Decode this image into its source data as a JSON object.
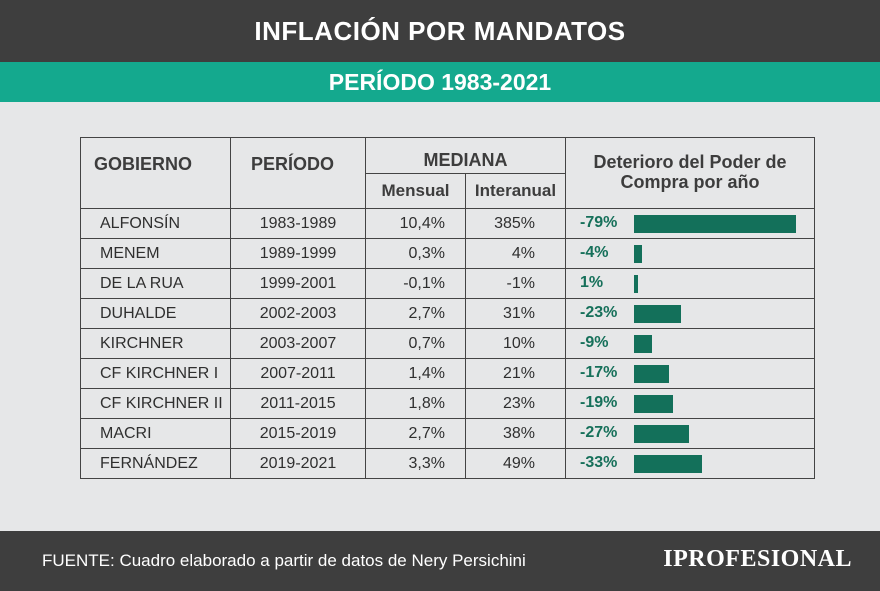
{
  "title": "INFLACIÓN POR MANDATOS",
  "subtitle": "PERÍODO 1983-2021",
  "headers": {
    "gobierno": "GOBIERNO",
    "periodo": "PERÍODO",
    "mediana": "MEDIANA",
    "mensual": "Mensual",
    "interanual": "Interanual",
    "deterioro": "Deterioro del Poder de Compra por año"
  },
  "rows": [
    {
      "gobierno": "ALFONSÍN",
      "periodo": "1983-1989",
      "mensual": "10,4%",
      "interanual": "385%",
      "deterioro": "-79%"
    },
    {
      "gobierno": "MENEM",
      "periodo": "1989-1999",
      "mensual": "0,3%",
      "interanual": "4%",
      "deterioro": "-4%"
    },
    {
      "gobierno": "DE LA RUA",
      "periodo": "1999-2001",
      "mensual": "-0,1%",
      "interanual": "-1%",
      "deterioro": "1%"
    },
    {
      "gobierno": "DUHALDE",
      "periodo": "2002-2003",
      "mensual": "2,7%",
      "interanual": "31%",
      "deterioro": "-23%"
    },
    {
      "gobierno": "KIRCHNER",
      "periodo": "2003-2007",
      "mensual": "0,7%",
      "interanual": "10%",
      "deterioro": "-9%"
    },
    {
      "gobierno": "CF KIRCHNER I",
      "periodo": "2007-2011",
      "mensual": "1,4%",
      "interanual": "21%",
      "deterioro": "-17%"
    },
    {
      "gobierno": "CF KIRCHNER II",
      "periodo": "2011-2015",
      "mensual": "1,8%",
      "interanual": "23%",
      "deterioro": "-19%"
    },
    {
      "gobierno": "MACRI",
      "periodo": "2015-2019",
      "mensual": "2,7%",
      "interanual": "38%",
      "deterioro": "-27%"
    },
    {
      "gobierno": "FERNÁNDEZ",
      "periodo": "2019-2021",
      "mensual": "3,3%",
      "interanual": "49%",
      "deterioro": "-33%"
    }
  ],
  "footer": {
    "source": "FUENTE: Cuadro elaborado a partir de datos de Nery Persichini",
    "logo": "IPROFESIONAL"
  },
  "colors": {
    "header": "#3e3e3e",
    "accent": "#14a98e",
    "bar": "#13705a"
  },
  "chart_data": {
    "type": "bar",
    "title": "Deterioro del Poder de Compra por año",
    "categories": [
      "ALFONSÍN",
      "MENEM",
      "DE LA RUA",
      "DUHALDE",
      "KIRCHNER",
      "CF KIRCHNER I",
      "CF KIRCHNER II",
      "MACRI",
      "FERNÁNDEZ"
    ],
    "values": [
      -79,
      -4,
      1,
      -23,
      -9,
      -17,
      -19,
      -27,
      -33
    ],
    "unit": "%",
    "orientation": "horizontal"
  }
}
